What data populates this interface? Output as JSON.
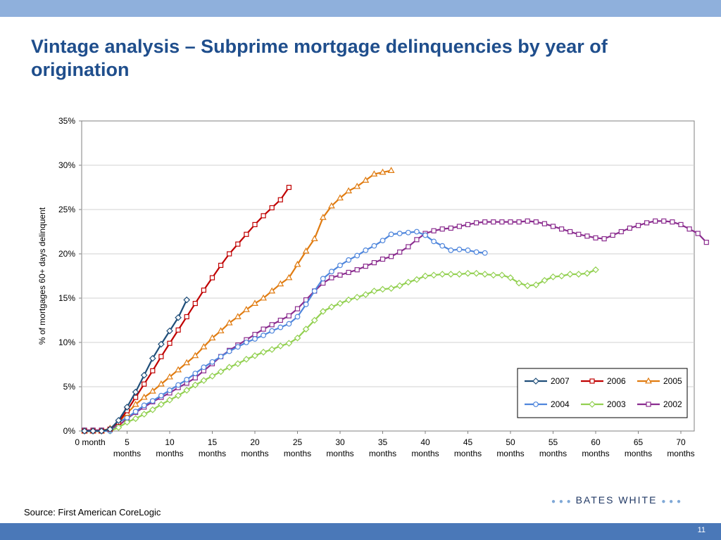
{
  "slide": {
    "title": "Vintage analysis – Subprime mortgage delinquencies by year of origination",
    "source": "Source: First American CoreLogic",
    "logo_text": "BATES WHITE",
    "page_number": "11"
  },
  "colors": {
    "top_band": "#8fb0dc",
    "bottom_band": "#4a78b8",
    "title": "#1f4e8c"
  },
  "chart_data": {
    "type": "line",
    "title": "",
    "xlabel": "",
    "ylabel": "% of mortgages 60+ days delinquent",
    "xlim": [
      0,
      71
    ],
    "ylim": [
      0,
      35
    ],
    "grid": true,
    "legend_position": "bottom-right",
    "y_ticks": [
      "0%",
      "5%",
      "10%",
      "15%",
      "20%",
      "25%",
      "30%",
      "35%"
    ],
    "x_ticks": [
      {
        "x": 0,
        "line1": "0 month",
        "line2": ""
      },
      {
        "x": 5,
        "line1": "5",
        "line2": "months"
      },
      {
        "x": 10,
        "line1": "10",
        "line2": "months"
      },
      {
        "x": 15,
        "line1": "15",
        "line2": "months"
      },
      {
        "x": 20,
        "line1": "20",
        "line2": "months"
      },
      {
        "x": 25,
        "line1": "25",
        "line2": "months"
      },
      {
        "x": 30,
        "line1": "30",
        "line2": "months"
      },
      {
        "x": 35,
        "line1": "35",
        "line2": "months"
      },
      {
        "x": 40,
        "line1": "40",
        "line2": "months"
      },
      {
        "x": 45,
        "line1": "45",
        "line2": "months"
      },
      {
        "x": 50,
        "line1": "50",
        "line2": "months"
      },
      {
        "x": 55,
        "line1": "55",
        "line2": "months"
      },
      {
        "x": 60,
        "line1": "60",
        "line2": "months"
      },
      {
        "x": 65,
        "line1": "65",
        "line2": "months"
      },
      {
        "x": 70,
        "line1": "70",
        "line2": "months"
      }
    ],
    "series": [
      {
        "name": "2007",
        "color": "#1f4e79",
        "marker": "diamond",
        "values": [
          0,
          0,
          0,
          0.2,
          1.2,
          2.7,
          4.4,
          6.3,
          8.2,
          9.8,
          11.3,
          12.8,
          14.8
        ]
      },
      {
        "name": "2006",
        "color": "#c00000",
        "marker": "square",
        "values": [
          0,
          0,
          0,
          0.2,
          1.0,
          2.3,
          3.8,
          5.3,
          6.8,
          8.4,
          9.9,
          11.4,
          12.9,
          14.4,
          15.9,
          17.3,
          18.7,
          20.0,
          21.1,
          22.2,
          23.3,
          24.3,
          25.2,
          26.1,
          27.5
        ]
      },
      {
        "name": "2005",
        "color": "#e07b10",
        "marker": "triangle",
        "values": [
          0,
          0,
          0,
          0.3,
          1.0,
          2.0,
          3.0,
          3.8,
          4.5,
          5.3,
          6.1,
          6.9,
          7.7,
          8.5,
          9.5,
          10.5,
          11.3,
          12.2,
          12.9,
          13.7,
          14.4,
          15.0,
          15.8,
          16.6,
          17.3,
          18.8,
          20.3,
          21.7,
          24.1,
          25.4,
          26.3,
          27.1,
          27.6,
          28.3,
          29.0,
          29.2,
          29.4
        ]
      },
      {
        "name": "2004",
        "color": "#4f86dc",
        "marker": "circle",
        "values": [
          0,
          0,
          0,
          0,
          1.0,
          1.5,
          2.2,
          2.9,
          3.4,
          4.0,
          4.6,
          5.2,
          5.8,
          6.5,
          7.2,
          7.8,
          8.4,
          9.0,
          9.5,
          10.0,
          10.4,
          10.8,
          11.3,
          11.7,
          12.1,
          12.9,
          14.3,
          15.8,
          17.2,
          18.0,
          18.7,
          19.3,
          19.8,
          20.4,
          20.9,
          21.5,
          22.2,
          22.3,
          22.4,
          22.5,
          22.1,
          21.4,
          20.9,
          20.4,
          20.5,
          20.4,
          20.2,
          20.1
        ]
      },
      {
        "name": "2003",
        "color": "#92d050",
        "marker": "diamond",
        "values": [
          0,
          0,
          0,
          0,
          0.4,
          1.0,
          1.4,
          1.9,
          2.4,
          3.0,
          3.5,
          4.0,
          4.6,
          5.2,
          5.7,
          6.2,
          6.7,
          7.2,
          7.6,
          8.1,
          8.5,
          8.9,
          9.2,
          9.6,
          9.9,
          10.5,
          11.5,
          12.5,
          13.5,
          14.0,
          14.4,
          14.8,
          15.1,
          15.4,
          15.8,
          16.0,
          16.1,
          16.4,
          16.8,
          17.1,
          17.5,
          17.6,
          17.7,
          17.7,
          17.7,
          17.8,
          17.8,
          17.7,
          17.6,
          17.6,
          17.3,
          16.7,
          16.4,
          16.5,
          17.0,
          17.4,
          17.5,
          17.7,
          17.7,
          17.8,
          18.2
        ]
      },
      {
        "name": "2002",
        "color": "#8b2d8f",
        "marker": "square",
        "values": [
          0.1,
          0.1,
          0.1,
          0.2,
          0.6,
          1.4,
          2.1,
          2.7,
          3.3,
          3.8,
          4.3,
          4.9,
          5.4,
          6.0,
          6.8,
          7.6,
          8.4,
          9.1,
          9.7,
          10.3,
          10.9,
          11.5,
          12.0,
          12.5,
          13.0,
          13.8,
          14.8,
          15.8,
          16.7,
          17.3,
          17.6,
          17.9,
          18.2,
          18.6,
          19.0,
          19.4,
          19.7,
          20.2,
          20.8,
          21.6,
          22.3,
          22.6,
          22.8,
          22.9,
          23.1,
          23.3,
          23.5,
          23.6,
          23.6,
          23.6,
          23.6,
          23.6,
          23.7,
          23.6,
          23.4,
          23.1,
          22.8,
          22.5,
          22.2,
          22.0,
          21.8,
          21.7,
          22.1,
          22.5,
          22.9,
          23.2,
          23.5,
          23.7,
          23.7,
          23.6,
          23.3,
          22.8,
          22.3,
          21.3
        ]
      }
    ]
  }
}
